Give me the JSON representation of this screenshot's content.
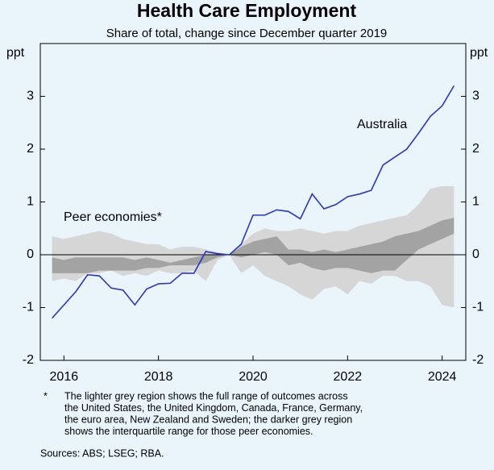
{
  "chart_data": {
    "type": "line",
    "title": "Health Care Employment",
    "subtitle": "Share of total, change since December quarter 2019",
    "y_unit": "ppt",
    "x": [
      2015.75,
      2016,
      2016.25,
      2016.5,
      2016.75,
      2017,
      2017.25,
      2017.5,
      2017.75,
      2018,
      2018.25,
      2018.5,
      2018.75,
      2019,
      2019.25,
      2019.5,
      2019.75,
      2020,
      2020.25,
      2020.5,
      2020.75,
      2021,
      2021.25,
      2021.5,
      2021.75,
      2022,
      2022.25,
      2022.5,
      2022.75,
      2023,
      2023.25,
      2023.5,
      2023.75,
      2024,
      2024.25
    ],
    "series": [
      {
        "name": "Australia",
        "color": "#2b36c0",
        "values": [
          -1.2,
          -0.95,
          -0.7,
          -0.38,
          -0.4,
          -0.63,
          -0.67,
          -0.95,
          -0.65,
          -0.55,
          -0.54,
          -0.35,
          -0.35,
          0.06,
          0.02,
          0,
          0.2,
          0.75,
          0.75,
          0.85,
          0.82,
          0.68,
          1.15,
          0.87,
          0.95,
          1.1,
          1.15,
          1.22,
          1.7,
          1.85,
          2.0,
          2.3,
          2.62,
          2.82,
          3.2
        ]
      }
    ],
    "peer_label": "Peer economies*",
    "bands": [
      {
        "color": "#d6d6d6",
        "high": [
          0.35,
          0.3,
          0.35,
          0.4,
          0.45,
          0.4,
          0.3,
          0.25,
          0.2,
          0.2,
          0.1,
          0.15,
          0.15,
          0.1,
          0.05,
          0,
          0.2,
          0.4,
          0.5,
          0.45,
          0.45,
          0.5,
          0.45,
          0.4,
          0.45,
          0.45,
          0.55,
          0.6,
          0.65,
          0.7,
          0.75,
          0.95,
          1.25,
          1.3,
          1.3
        ],
        "low": [
          -0.5,
          -0.45,
          -0.5,
          -0.35,
          -0.35,
          -0.3,
          -0.4,
          -0.35,
          -0.4,
          -0.3,
          -0.35,
          -0.35,
          -0.3,
          -0.5,
          -0.1,
          0,
          -0.35,
          -0.2,
          -0.4,
          -0.5,
          -0.6,
          -0.75,
          -0.85,
          -0.65,
          -0.6,
          -0.75,
          -0.5,
          -0.55,
          -0.4,
          -0.4,
          -0.5,
          -0.5,
          -0.6,
          -0.95,
          -1.0
        ]
      },
      {
        "color": "#a3a3a3",
        "high": [
          -0.05,
          -0.1,
          -0.05,
          -0.05,
          -0.05,
          -0.05,
          -0.05,
          -0.1,
          -0.05,
          -0.1,
          -0.15,
          -0.1,
          -0.05,
          0.0,
          0.0,
          0,
          0.15,
          0.25,
          0.3,
          0.35,
          0.1,
          0.1,
          0.05,
          0.1,
          0.05,
          0.1,
          0.15,
          0.2,
          0.25,
          0.35,
          0.4,
          0.45,
          0.55,
          0.65,
          0.7
        ],
        "low": [
          -0.35,
          -0.35,
          -0.35,
          -0.35,
          -0.3,
          -0.3,
          -0.3,
          -0.3,
          -0.25,
          -0.25,
          -0.2,
          -0.2,
          -0.2,
          -0.15,
          -0.05,
          0,
          -0.05,
          0.0,
          0.05,
          0.0,
          -0.2,
          -0.15,
          -0.25,
          -0.3,
          -0.25,
          -0.25,
          -0.3,
          -0.35,
          -0.3,
          -0.3,
          -0.1,
          0.1,
          0.2,
          0.3,
          0.4
        ]
      }
    ],
    "xlim": [
      2015.5,
      2024.5
    ],
    "xticks": [
      2016,
      2018,
      2020,
      2022,
      2024
    ],
    "ylim": [
      -2,
      4
    ],
    "yticks": [
      -2,
      -1,
      0,
      1,
      2,
      3
    ],
    "footnote": {
      "marker": "*",
      "lines": [
        "The lighter grey region shows the full range of outcomes across",
        "the United States, the United Kingdom, Canada, France, Germany,",
        "the euro area, New Zealand and Sweden; the darker grey region",
        "shows the interquartile range for those peer economies."
      ]
    },
    "sources": "Sources: ABS; LSEG; RBA."
  }
}
